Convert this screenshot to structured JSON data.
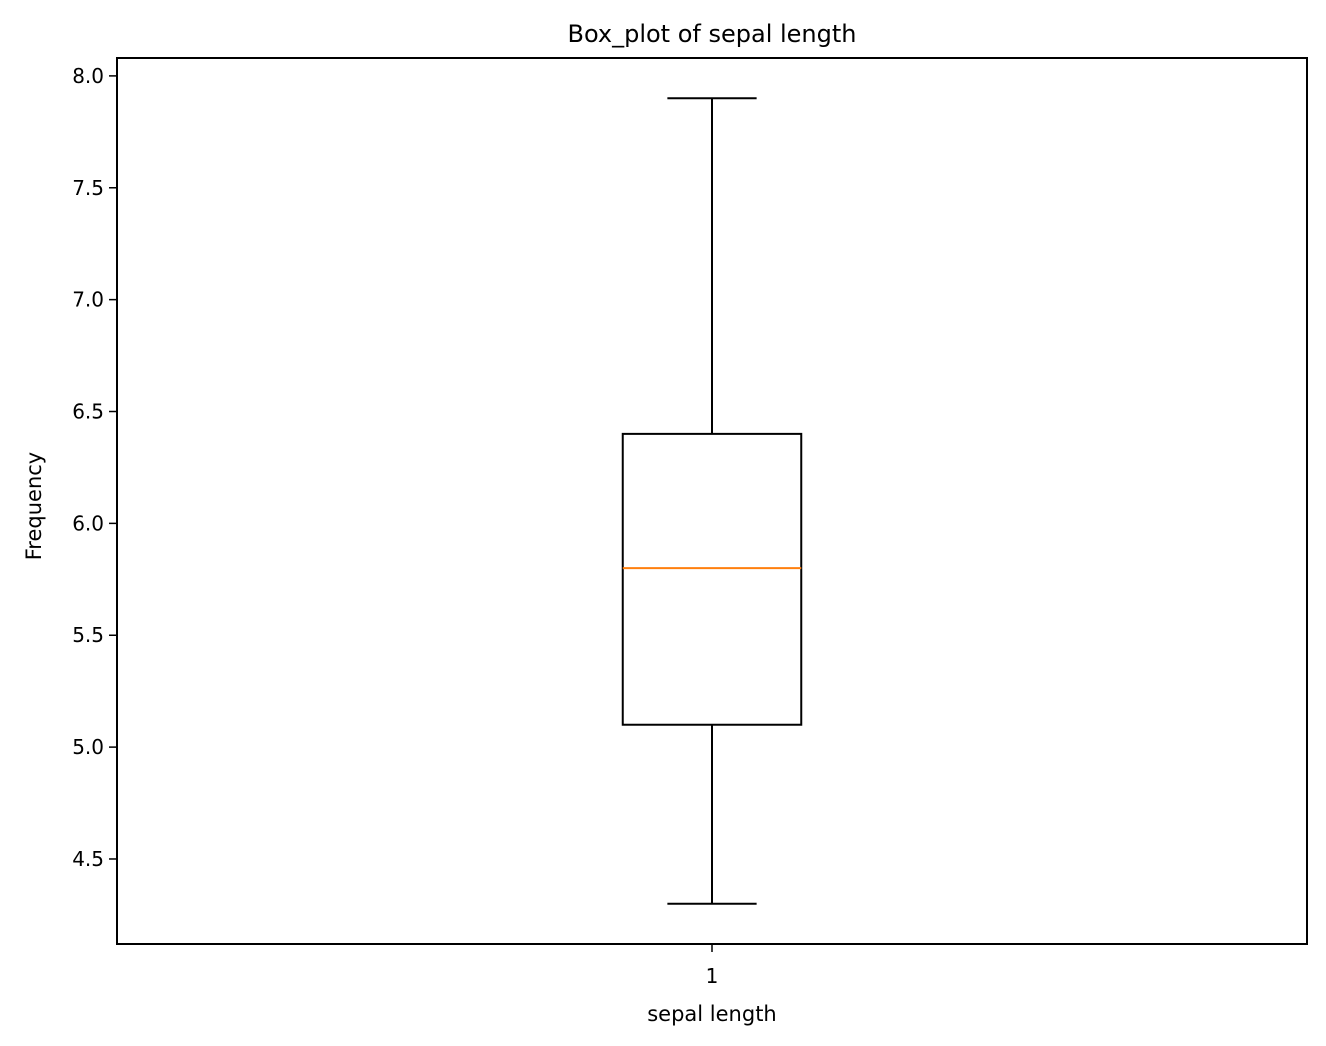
{
  "chart_data": {
    "type": "box",
    "title": "Box_plot of sepal length",
    "xlabel": "sepal length",
    "ylabel": "Frequency",
    "categories": [
      "1"
    ],
    "ylim": [
      4.12,
      8.08
    ],
    "yticks": [
      "4.5",
      "5.0",
      "5.5",
      "6.0",
      "6.5",
      "7.0",
      "7.5",
      "8.0"
    ],
    "grid": false,
    "boxes": [
      {
        "category": "1",
        "whisker_low": 4.3,
        "q1": 5.1,
        "median": 5.8,
        "q3": 6.4,
        "whisker_high": 7.9
      }
    ],
    "colors": {
      "box": "#000000",
      "median": "#ff7f0e"
    }
  }
}
